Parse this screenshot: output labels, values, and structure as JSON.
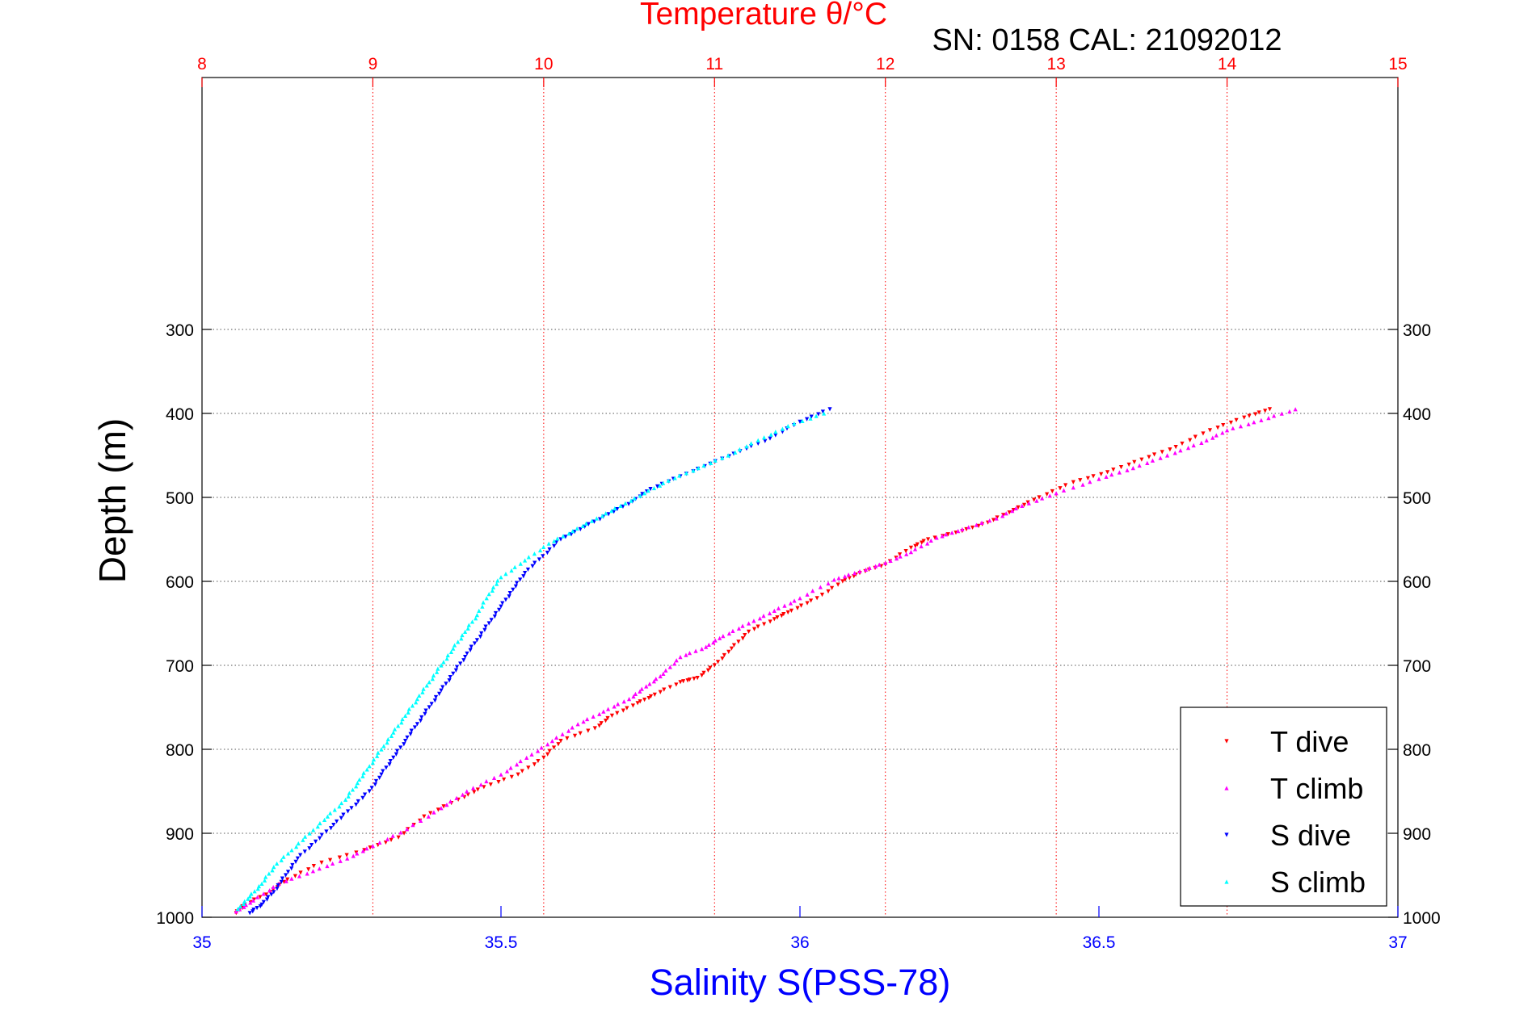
{
  "chart_data": {
    "type": "scatter",
    "title": "Temperature θ/°C",
    "subtitle": "SN: 0158  CAL: 21092012",
    "xlabel": "Salinity S(PSS-78)",
    "ylabel": "Depth (m)",
    "x_top": {
      "label": "Temperature θ/°C",
      "lim": [
        8,
        15
      ],
      "ticks": [
        "8",
        "9",
        "10",
        "11",
        "12",
        "13",
        "14",
        "15"
      ],
      "color": "#ff0000",
      "grid": true
    },
    "x_bottom": {
      "label": "Salinity S(PSS-78)",
      "lim": [
        35,
        37
      ],
      "ticks": [
        "35",
        "35.5",
        "36",
        "36.5",
        "37"
      ],
      "color": "#0000ff"
    },
    "y": {
      "lim": [
        0,
        1000
      ],
      "reversed": true,
      "ticks": [
        "300",
        "400",
        "500",
        "600",
        "700",
        "800",
        "900",
        "1000"
      ],
      "grid": true
    },
    "legend": {
      "position": "bottom-right",
      "entries": [
        "T dive",
        "T climb",
        "S dive",
        "S climb"
      ]
    },
    "series": [
      {
        "name": "T dive",
        "axis": "temperature",
        "color": "#ff0000",
        "marker": "triangle-down",
        "points": [
          [
            14.25,
            395
          ],
          [
            14.1,
            405
          ],
          [
            13.9,
            420
          ],
          [
            13.7,
            440
          ],
          [
            13.5,
            455
          ],
          [
            13.3,
            470
          ],
          [
            13.1,
            482
          ],
          [
            12.9,
            500
          ],
          [
            12.75,
            515
          ],
          [
            12.6,
            530
          ],
          [
            12.45,
            540
          ],
          [
            12.25,
            550
          ],
          [
            12.15,
            560
          ],
          [
            12.0,
            580
          ],
          [
            11.85,
            590
          ],
          [
            11.75,
            600
          ],
          [
            11.6,
            620
          ],
          [
            11.45,
            635
          ],
          [
            11.35,
            645
          ],
          [
            11.2,
            660
          ],
          [
            11.1,
            680
          ],
          [
            11.0,
            700
          ],
          [
            10.9,
            715
          ],
          [
            10.8,
            720
          ],
          [
            10.65,
            735
          ],
          [
            10.55,
            745
          ],
          [
            10.4,
            760
          ],
          [
            10.3,
            775
          ],
          [
            10.1,
            790
          ],
          [
            10.0,
            810
          ],
          [
            9.85,
            830
          ],
          [
            9.65,
            845
          ],
          [
            9.5,
            860
          ],
          [
            9.3,
            880
          ],
          [
            9.15,
            905
          ],
          [
            8.95,
            920
          ],
          [
            8.7,
            935
          ],
          [
            8.5,
            955
          ],
          [
            8.4,
            970
          ],
          [
            8.25,
            985
          ],
          [
            8.2,
            995
          ]
        ]
      },
      {
        "name": "T climb",
        "axis": "temperature",
        "color": "#ff00ff",
        "marker": "triangle-up",
        "points": [
          [
            14.4,
            395
          ],
          [
            14.2,
            408
          ],
          [
            14.0,
            420
          ],
          [
            13.85,
            435
          ],
          [
            13.65,
            450
          ],
          [
            13.45,
            465
          ],
          [
            13.25,
            478
          ],
          [
            13.0,
            495
          ],
          [
            12.8,
            510
          ],
          [
            12.65,
            525
          ],
          [
            12.45,
            538
          ],
          [
            12.3,
            548
          ],
          [
            12.15,
            565
          ],
          [
            12.0,
            578
          ],
          [
            11.85,
            588
          ],
          [
            11.7,
            598
          ],
          [
            11.5,
            620
          ],
          [
            11.35,
            635
          ],
          [
            11.2,
            650
          ],
          [
            11.05,
            665
          ],
          [
            10.95,
            678
          ],
          [
            10.8,
            690
          ],
          [
            10.7,
            710
          ],
          [
            10.6,
            725
          ],
          [
            10.5,
            740
          ],
          [
            10.35,
            755
          ],
          [
            10.2,
            770
          ],
          [
            10.05,
            790
          ],
          [
            9.9,
            810
          ],
          [
            9.75,
            830
          ],
          [
            9.55,
            850
          ],
          [
            9.4,
            870
          ],
          [
            9.2,
            895
          ],
          [
            9.0,
            915
          ],
          [
            8.85,
            930
          ],
          [
            8.65,
            945
          ],
          [
            8.45,
            960
          ],
          [
            8.3,
            980
          ],
          [
            8.2,
            993
          ]
        ]
      },
      {
        "name": "S dive",
        "axis": "salinity",
        "color": "#0000ff",
        "marker": "triangle-down",
        "points": [
          [
            36.05,
            395
          ],
          [
            36.0,
            410
          ],
          [
            35.95,
            430
          ],
          [
            35.9,
            445
          ],
          [
            35.85,
            460
          ],
          [
            35.8,
            475
          ],
          [
            35.75,
            490
          ],
          [
            35.72,
            505
          ],
          [
            35.68,
            520
          ],
          [
            35.64,
            535
          ],
          [
            35.6,
            550
          ],
          [
            35.57,
            570
          ],
          [
            35.54,
            590
          ],
          [
            35.52,
            610
          ],
          [
            35.5,
            630
          ],
          [
            35.48,
            650
          ],
          [
            35.46,
            670
          ],
          [
            35.44,
            690
          ],
          [
            35.42,
            710
          ],
          [
            35.4,
            730
          ],
          [
            35.38,
            750
          ],
          [
            35.36,
            770
          ],
          [
            35.34,
            790
          ],
          [
            35.32,
            810
          ],
          [
            35.3,
            830
          ],
          [
            35.28,
            850
          ],
          [
            35.25,
            870
          ],
          [
            35.22,
            890
          ],
          [
            35.19,
            910
          ],
          [
            35.16,
            930
          ],
          [
            35.14,
            950
          ],
          [
            35.12,
            970
          ],
          [
            35.1,
            985
          ],
          [
            35.08,
            995
          ]
        ]
      },
      {
        "name": "S climb",
        "axis": "salinity",
        "color": "#00ffff",
        "marker": "triangle-up",
        "points": [
          [
            36.04,
            400
          ],
          [
            35.98,
            415
          ],
          [
            35.93,
            432
          ],
          [
            35.88,
            450
          ],
          [
            35.83,
            465
          ],
          [
            35.78,
            480
          ],
          [
            35.74,
            495
          ],
          [
            35.7,
            510
          ],
          [
            35.66,
            525
          ],
          [
            35.62,
            540
          ],
          [
            35.58,
            555
          ],
          [
            35.54,
            575
          ],
          [
            35.5,
            595
          ],
          [
            35.48,
            615
          ],
          [
            35.46,
            640
          ],
          [
            35.44,
            660
          ],
          [
            35.42,
            680
          ],
          [
            35.4,
            700
          ],
          [
            35.38,
            720
          ],
          [
            35.36,
            740
          ],
          [
            35.34,
            760
          ],
          [
            35.32,
            780
          ],
          [
            35.3,
            800
          ],
          [
            35.28,
            820
          ],
          [
            35.26,
            840
          ],
          [
            35.24,
            860
          ],
          [
            35.21,
            880
          ],
          [
            35.18,
            900
          ],
          [
            35.15,
            920
          ],
          [
            35.12,
            940
          ],
          [
            35.1,
            960
          ],
          [
            35.08,
            975
          ],
          [
            35.06,
            990
          ]
        ]
      }
    ]
  }
}
